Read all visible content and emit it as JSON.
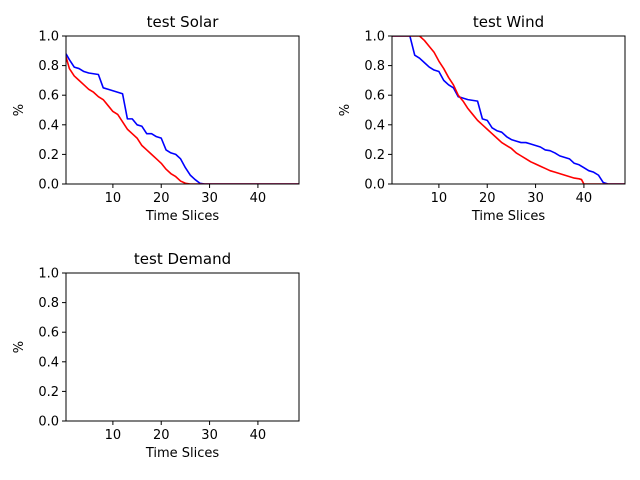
{
  "chart_data": [
    {
      "type": "line",
      "title": "test Solar",
      "xlabel": "Time Slices",
      "ylabel": "%",
      "xlim": [
        0.3,
        48.5
      ],
      "ylim": [
        0,
        1
      ],
      "xticks": [
        10,
        20,
        30,
        40
      ],
      "yticks": [
        0.0,
        0.2,
        0.4,
        0.6,
        0.8,
        1.0
      ],
      "grid": false,
      "series": [
        {
          "color": "#0000ff",
          "x": [
            0.3,
            1,
            2,
            3,
            4,
            5,
            6,
            7,
            8,
            9,
            10,
            11,
            12,
            13,
            14,
            15,
            16,
            17,
            18,
            19,
            20,
            21,
            22,
            23,
            24,
            25,
            26,
            27,
            28,
            29,
            30,
            31,
            48.5
          ],
          "y": [
            0.88,
            0.84,
            0.79,
            0.78,
            0.76,
            0.75,
            0.745,
            0.74,
            0.65,
            0.64,
            0.63,
            0.62,
            0.61,
            0.44,
            0.44,
            0.4,
            0.39,
            0.34,
            0.34,
            0.32,
            0.31,
            0.23,
            0.21,
            0.2,
            0.17,
            0.11,
            0.06,
            0.03,
            0.005,
            0.0,
            0.0,
            0.0,
            0.0
          ]
        },
        {
          "color": "#ff0000",
          "x": [
            0.3,
            1,
            2,
            3,
            4,
            5,
            6,
            7,
            8,
            9,
            10,
            11,
            12,
            13,
            14,
            15,
            16,
            17,
            18,
            19,
            20,
            21,
            22,
            23,
            24,
            25,
            26,
            48.5
          ],
          "y": [
            0.86,
            0.78,
            0.73,
            0.7,
            0.67,
            0.64,
            0.62,
            0.59,
            0.57,
            0.53,
            0.49,
            0.47,
            0.42,
            0.37,
            0.34,
            0.31,
            0.26,
            0.23,
            0.2,
            0.17,
            0.14,
            0.1,
            0.07,
            0.05,
            0.02,
            0.005,
            0.0,
            0.0
          ]
        }
      ]
    },
    {
      "type": "line",
      "title": "test Wind",
      "xlabel": "Time Slices",
      "ylabel": "%",
      "xlim": [
        0.3,
        48.5
      ],
      "ylim": [
        0,
        1
      ],
      "xticks": [
        10,
        20,
        30,
        40
      ],
      "yticks": [
        0.0,
        0.2,
        0.4,
        0.6,
        0.8,
        1.0
      ],
      "grid": false,
      "series": [
        {
          "color": "#0000ff",
          "x": [
            0.3,
            3,
            4,
            5,
            6,
            7,
            8,
            9,
            10,
            11,
            12,
            13,
            14,
            15,
            16,
            17,
            18,
            19,
            20,
            21,
            22,
            23,
            24,
            25,
            26,
            27,
            28,
            29,
            30,
            31,
            32,
            33,
            34,
            35,
            36,
            37,
            38,
            39,
            40,
            41,
            42,
            43,
            44,
            45,
            48.5
          ],
          "y": [
            1.0,
            1.0,
            1.0,
            0.87,
            0.85,
            0.82,
            0.79,
            0.77,
            0.76,
            0.7,
            0.67,
            0.65,
            0.59,
            0.58,
            0.57,
            0.565,
            0.56,
            0.44,
            0.43,
            0.38,
            0.36,
            0.35,
            0.32,
            0.3,
            0.29,
            0.28,
            0.28,
            0.27,
            0.26,
            0.25,
            0.23,
            0.225,
            0.21,
            0.19,
            0.18,
            0.17,
            0.14,
            0.13,
            0.11,
            0.09,
            0.08,
            0.06,
            0.01,
            0.0,
            0.0
          ]
        },
        {
          "color": "#ff0000",
          "x": [
            0.3,
            5,
            6,
            7,
            8,
            9,
            10,
            11,
            12,
            13,
            14,
            15,
            16,
            17,
            18,
            19,
            20,
            21,
            22,
            23,
            24,
            25,
            26,
            27,
            28,
            29,
            30,
            31,
            32,
            33,
            34,
            35,
            36,
            37,
            38,
            39,
            39.5,
            40,
            48.5
          ],
          "y": [
            1.0,
            1.0,
            1.0,
            0.97,
            0.93,
            0.89,
            0.83,
            0.78,
            0.72,
            0.67,
            0.6,
            0.56,
            0.51,
            0.47,
            0.43,
            0.4,
            0.37,
            0.34,
            0.31,
            0.28,
            0.26,
            0.24,
            0.21,
            0.19,
            0.17,
            0.15,
            0.135,
            0.12,
            0.105,
            0.09,
            0.08,
            0.07,
            0.06,
            0.05,
            0.04,
            0.035,
            0.03,
            0.0,
            0.0
          ]
        }
      ]
    },
    {
      "type": "line",
      "title": "test Demand",
      "xlabel": "Time Slices",
      "ylabel": "%",
      "xlim": [
        0.3,
        48.5
      ],
      "ylim": [
        0,
        1
      ],
      "xticks": [
        10,
        20,
        30,
        40
      ],
      "yticks": [
        0.0,
        0.2,
        0.4,
        0.6,
        0.8,
        1.0
      ],
      "grid": false,
      "series": []
    }
  ]
}
